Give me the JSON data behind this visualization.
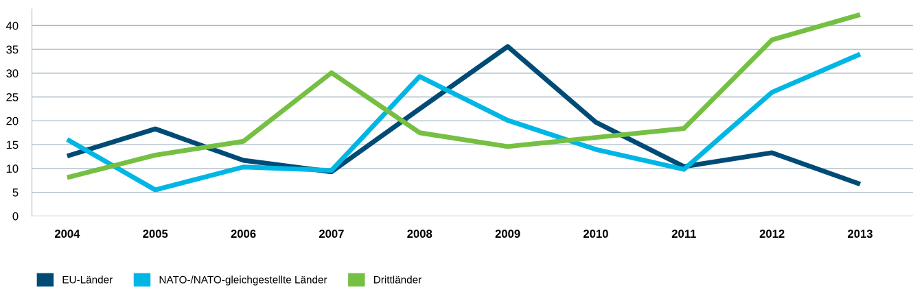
{
  "chart_data": {
    "type": "line",
    "categories": [
      "2004",
      "2005",
      "2006",
      "2007",
      "2008",
      "2009",
      "2010",
      "2011",
      "2012",
      "2013"
    ],
    "series": [
      {
        "name": "EU-Länder",
        "color": "#004b76",
        "values": [
          12.6,
          18.3,
          11.7,
          9.3,
          22.5,
          35.6,
          19.7,
          10.4,
          13.3,
          6.7
        ]
      },
      {
        "name": "NATO-/NATO-gleichgestellte Länder",
        "color": "#00b6e4",
        "values": [
          16.1,
          5.5,
          10.3,
          9.6,
          29.3,
          20.1,
          14.0,
          9.8,
          26.0,
          34.0
        ]
      },
      {
        "name": "Drittländer",
        "color": "#75c043",
        "values": [
          8.1,
          12.8,
          15.7,
          30.1,
          17.5,
          14.6,
          16.5,
          18.4,
          37.0,
          42.3
        ]
      }
    ],
    "ylim": [
      0,
      43.5
    ],
    "yticks": [
      0,
      5,
      10,
      15,
      20,
      25,
      30,
      35,
      40
    ],
    "grid": "y",
    "legend": "bottom left",
    "marker": "none",
    "line_style": "solid"
  }
}
